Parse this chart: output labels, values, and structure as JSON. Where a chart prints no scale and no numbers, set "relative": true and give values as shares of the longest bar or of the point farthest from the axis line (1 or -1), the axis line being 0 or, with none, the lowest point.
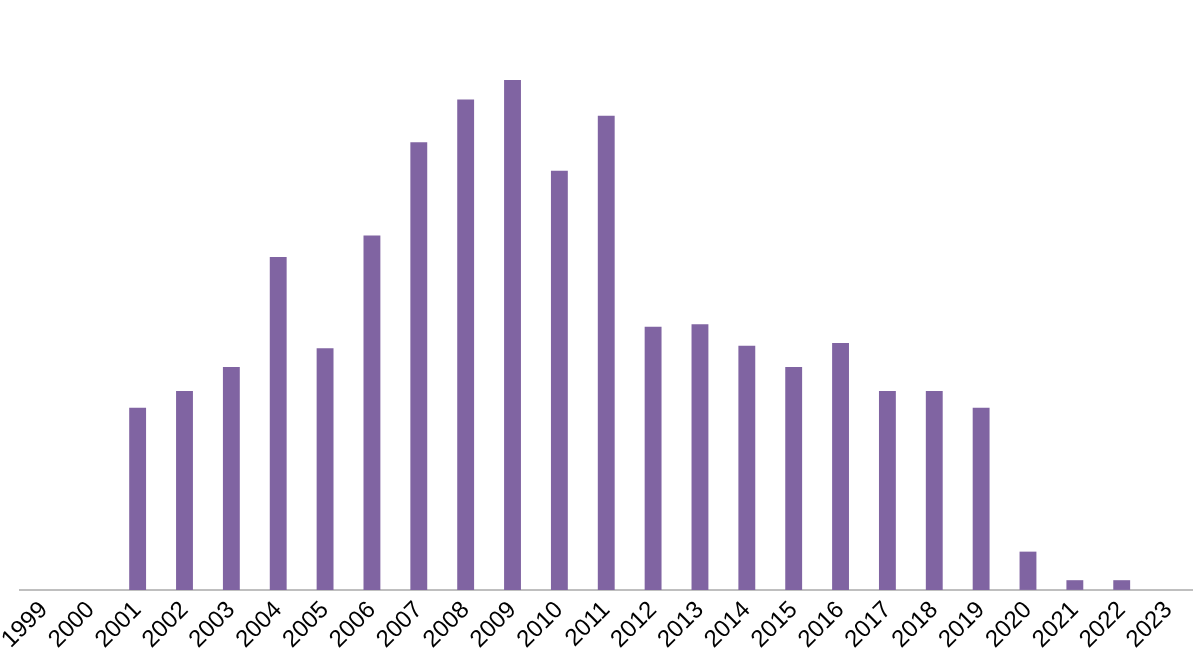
{
  "chart_data": {
    "type": "bar",
    "relative": true,
    "categories": [
      "1999",
      "2000",
      "2001",
      "2002",
      "2003",
      "2004",
      "2005",
      "2006",
      "2007",
      "2008",
      "2009",
      "2010",
      "2011",
      "2012",
      "2013",
      "2014",
      "2015",
      "2016",
      "2017",
      "2018",
      "2019",
      "2020",
      "2021",
      "2022",
      "2023"
    ],
    "values": [
      0,
      0,
      0.357,
      0.39,
      0.437,
      0.653,
      0.474,
      0.695,
      0.878,
      0.962,
      1,
      0.822,
      0.93,
      0.516,
      0.521,
      0.479,
      0.437,
      0.484,
      0.39,
      0.39,
      0.357,
      0.075,
      0.019,
      0.019,
      0
    ],
    "color": "#8064a2",
    "grid": false,
    "legend": false
  }
}
